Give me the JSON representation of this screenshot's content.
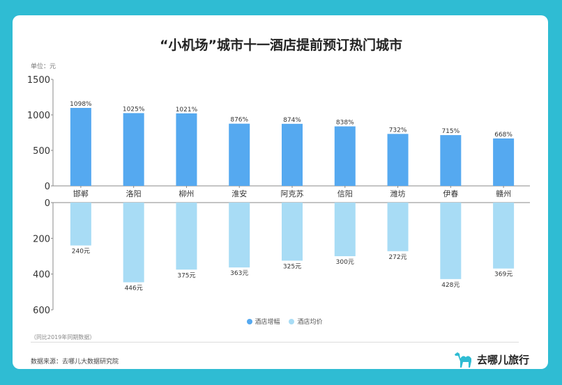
{
  "chart_data": [
    {
      "type": "bar",
      "title": "“小机场”城市十一酒店提前预订热门城市",
      "unit_label": "单位：元",
      "categories": [
        "邯郸",
        "洛阳",
        "柳州",
        "淮安",
        "阿克苏",
        "信阳",
        "潍坊",
        "伊春",
        "赣州"
      ],
      "series": [
        {
          "name": "酒店增幅",
          "values": [
            1098,
            1025,
            1021,
            876,
            874,
            838,
            732,
            715,
            668
          ],
          "labels": [
            "1098%",
            "1025%",
            "1021%",
            "876%",
            "874%",
            "838%",
            "732%",
            "715%",
            "668%"
          ],
          "color": "#55a9f0"
        }
      ],
      "ylim": [
        0,
        1500
      ],
      "yticks": [
        "0",
        "500",
        "1000",
        "1500"
      ],
      "grid": false
    },
    {
      "type": "bar",
      "orientation": "inverted",
      "categories": [
        "邯郸",
        "洛阳",
        "柳州",
        "淮安",
        "阿克苏",
        "信阳",
        "潍坊",
        "伊春",
        "赣州"
      ],
      "series": [
        {
          "name": "酒店均价",
          "values": [
            240,
            446,
            375,
            363,
            325,
            300,
            272,
            428,
            369
          ],
          "labels": [
            "240元",
            "446元",
            "375元",
            "363元",
            "325元",
            "300元",
            "272元",
            "428元",
            "369元"
          ],
          "color": "#a8dcf5"
        }
      ],
      "ylim": [
        0,
        600
      ],
      "yticks": [
        "0",
        "200",
        "400",
        "600"
      ],
      "grid": false
    }
  ],
  "legend": {
    "position": "bottom",
    "items": [
      {
        "label": "酒店增幅",
        "color": "#55a9f0"
      },
      {
        "label": "酒店均价",
        "color": "#a8dcf5"
      }
    ]
  },
  "note": "（同比2019年同期数据）",
  "source": "数据来源：去哪儿大数据研究院",
  "brand": "去哪儿旅行"
}
